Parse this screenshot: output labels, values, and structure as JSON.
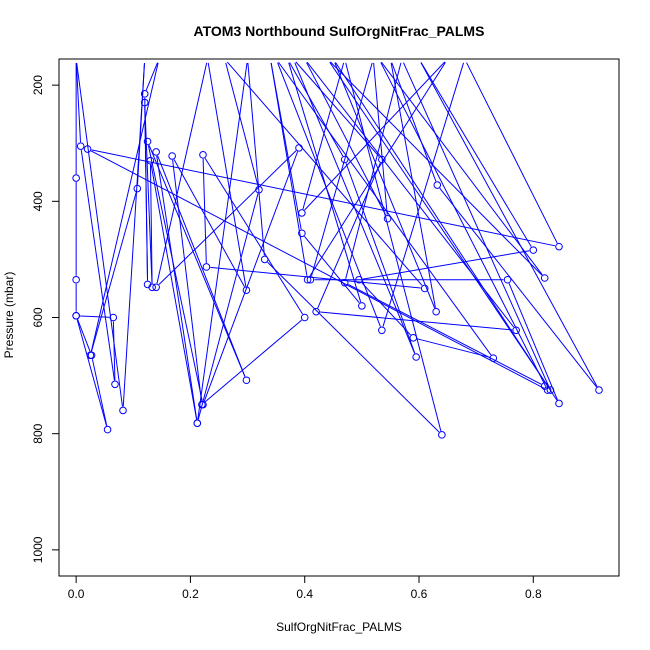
{
  "chart_data": {
    "type": "line",
    "title": "ATOM3 Northbound SulfOrgNitFrac_PALMS",
    "xlabel": "SulfOrgNitFrac_PALMS",
    "ylabel": "Pressure (mbar)",
    "xlim": [
      -0.03,
      0.95
    ],
    "ylim": [
      1045,
      155
    ],
    "y_reversed": true,
    "xticks": [
      0.0,
      0.2,
      0.4,
      0.6,
      0.8
    ],
    "xtick_labels": [
      "0.0",
      "0.2",
      "0.4",
      "0.6",
      "0.8"
    ],
    "yticks": [
      200,
      400,
      600,
      800,
      1000
    ],
    "ytick_labels": [
      "200",
      "400",
      "600",
      "800",
      "1000"
    ],
    "grid": false,
    "legend": "none",
    "colors": {
      "series": "#0000ff",
      "axis": "#000000"
    },
    "series": [
      {
        "points": [
          [
            0.0,
            155
          ],
          [
            0.0,
            360
          ],
          [
            0.0,
            535
          ],
          [
            0.0,
            597
          ],
          [
            0.027,
            665
          ],
          [
            0.055,
            793
          ],
          [
            0.0,
            597
          ],
          [
            0.065,
            600
          ],
          [
            0.068,
            715
          ],
          [
            0.008,
            305
          ],
          [
            0.0,
            155
          ],
          [
            0.082,
            760
          ],
          [
            0.12,
            155
          ],
          [
            0.107,
            378
          ],
          [
            0.025,
            665
          ],
          [
            0.145,
            155
          ],
          [
            0.12,
            215
          ],
          [
            0.125,
            543
          ],
          [
            0.12,
            230
          ],
          [
            0.133,
            548
          ],
          [
            0.13,
            330
          ],
          [
            0.212,
            782
          ],
          [
            0.14,
            315
          ],
          [
            0.298,
            708
          ],
          [
            0.125,
            297
          ],
          [
            0.222,
            750
          ],
          [
            0.39,
            308
          ],
          [
            0.14,
            548
          ],
          [
            0.23,
            155
          ],
          [
            0.298,
            553
          ],
          [
            0.168,
            322
          ],
          [
            0.22,
            750
          ],
          [
            0.4,
            600
          ],
          [
            0.222,
            320
          ],
          [
            0.228,
            513
          ],
          [
            0.61,
            550
          ],
          [
            0.26,
            155
          ],
          [
            0.32,
            380
          ],
          [
            0.212,
            782
          ],
          [
            0.3,
            155
          ],
          [
            0.33,
            500
          ],
          [
            0.64,
            802
          ],
          [
            0.47,
            155
          ],
          [
            0.395,
            420
          ],
          [
            0.65,
            155
          ],
          [
            0.405,
            535
          ],
          [
            0.34,
            155
          ],
          [
            0.395,
            455
          ],
          [
            0.5,
            580
          ],
          [
            0.37,
            155
          ],
          [
            0.47,
            328
          ],
          [
            0.595,
            668
          ],
          [
            0.38,
            155
          ],
          [
            0.535,
            328
          ],
          [
            0.42,
            590
          ],
          [
            0.77,
            622
          ],
          [
            0.4,
            155
          ],
          [
            0.545,
            430
          ],
          [
            0.52,
            155
          ],
          [
            0.41,
            535
          ],
          [
            0.755,
            535
          ],
          [
            0.845,
            748
          ],
          [
            0.45,
            155
          ],
          [
            0.63,
            590
          ],
          [
            0.55,
            155
          ],
          [
            0.632,
            372
          ],
          [
            0.915,
            725
          ],
          [
            0.6,
            155
          ],
          [
            0.8,
            484
          ],
          [
            0.495,
            535
          ],
          [
            0.59,
            635
          ],
          [
            0.73,
            670
          ],
          [
            0.35,
            155
          ],
          [
            0.535,
            622
          ],
          [
            0.68,
            155
          ],
          [
            0.845,
            478
          ],
          [
            0.02,
            310
          ],
          [
            0.825,
            725
          ],
          [
            0.53,
            155
          ],
          [
            0.82,
            532
          ],
          [
            0.44,
            155
          ],
          [
            0.83,
            725
          ],
          [
            0.57,
            155
          ],
          [
            0.47,
            540
          ],
          [
            0.82,
            718
          ]
        ]
      }
    ]
  }
}
